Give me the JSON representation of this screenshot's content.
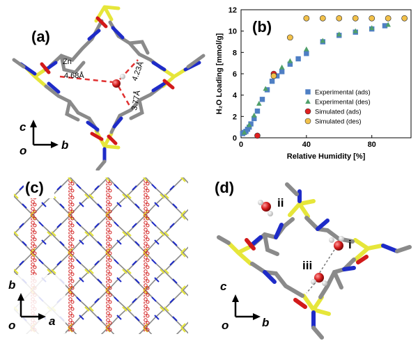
{
  "panels": {
    "a": {
      "label": "(a)",
      "metal_label": "Zn",
      "distances": [
        "4.68Å",
        "4.23Å",
        "3.77Å"
      ],
      "axes": {
        "up": "c",
        "right": "b",
        "origin": "o"
      }
    },
    "b": {
      "label": "(b)"
    },
    "c": {
      "label": "(c)",
      "axes": {
        "up": "b",
        "right": "a",
        "origin": "o"
      }
    },
    "d": {
      "label": "(d)",
      "sites": [
        "i",
        "ii",
        "iii"
      ],
      "axes": {
        "up": "c",
        "right": "b",
        "origin": "o"
      }
    }
  },
  "colors": {
    "linker": "#8a8a8a",
    "nitrogen": "#1e2bc8",
    "oxygen": "#d21a1a",
    "zinc": "#e6e63a",
    "exp_marker": "#4f7fc4",
    "exp_des_marker": "#4f9f6a",
    "sim_ads_marker": "#e02020",
    "sim_des_marker": "#f2c14a"
  },
  "chart_data": {
    "type": "scatter",
    "xlabel": "Relative Humidity [%]",
    "ylabel": "H₂O Loading [mmol/g]",
    "xlim": [
      0,
      104
    ],
    "ylim": [
      0,
      12
    ],
    "xticks": [
      0,
      40,
      80
    ],
    "yticks": [
      0,
      2,
      4,
      6,
      8,
      10,
      12
    ],
    "legend_position": "center-right",
    "series": [
      {
        "name": "Experimental (ads)",
        "marker": "square",
        "color": "#4f7fc4",
        "x": [
          1,
          2,
          3,
          4,
          5,
          6,
          8,
          10,
          13,
          16,
          19,
          22,
          25,
          30,
          35,
          40,
          50,
          60,
          70,
          80,
          88
        ],
        "y": [
          0.4,
          0.5,
          0.6,
          0.8,
          1.0,
          1.3,
          1.8,
          2.5,
          3.6,
          4.5,
          5.3,
          5.8,
          6.2,
          6.9,
          7.4,
          7.9,
          9.0,
          9.6,
          9.9,
          10.2,
          10.5
        ]
      },
      {
        "name": "Experimental (des)",
        "marker": "triangle",
        "color": "#4f9f6a",
        "x": [
          2,
          5,
          8,
          11,
          15,
          20,
          25,
          30,
          40,
          50,
          60,
          70,
          80,
          90
        ],
        "y": [
          0.5,
          1.2,
          2.1,
          3.2,
          4.6,
          5.9,
          6.6,
          7.2,
          8.3,
          9.1,
          9.7,
          10.0,
          10.3,
          10.6
        ]
      },
      {
        "name": "Simulated (ads)",
        "marker": "circle",
        "color": "#e02020",
        "x": [
          10,
          20,
          30,
          40,
          50,
          60,
          70,
          80,
          90,
          100
        ],
        "y": [
          0.2,
          6.0,
          9.4,
          11.2,
          11.2,
          11.2,
          11.2,
          11.2,
          11.2,
          11.2
        ]
      },
      {
        "name": "Simulated (des)",
        "marker": "circle",
        "color": "#f2c14a",
        "x": [
          20,
          30,
          40,
          50,
          60,
          70,
          80,
          90,
          100
        ],
        "y": [
          5.8,
          9.4,
          11.2,
          11.2,
          11.2,
          11.2,
          11.2,
          11.2,
          11.2
        ]
      }
    ]
  }
}
